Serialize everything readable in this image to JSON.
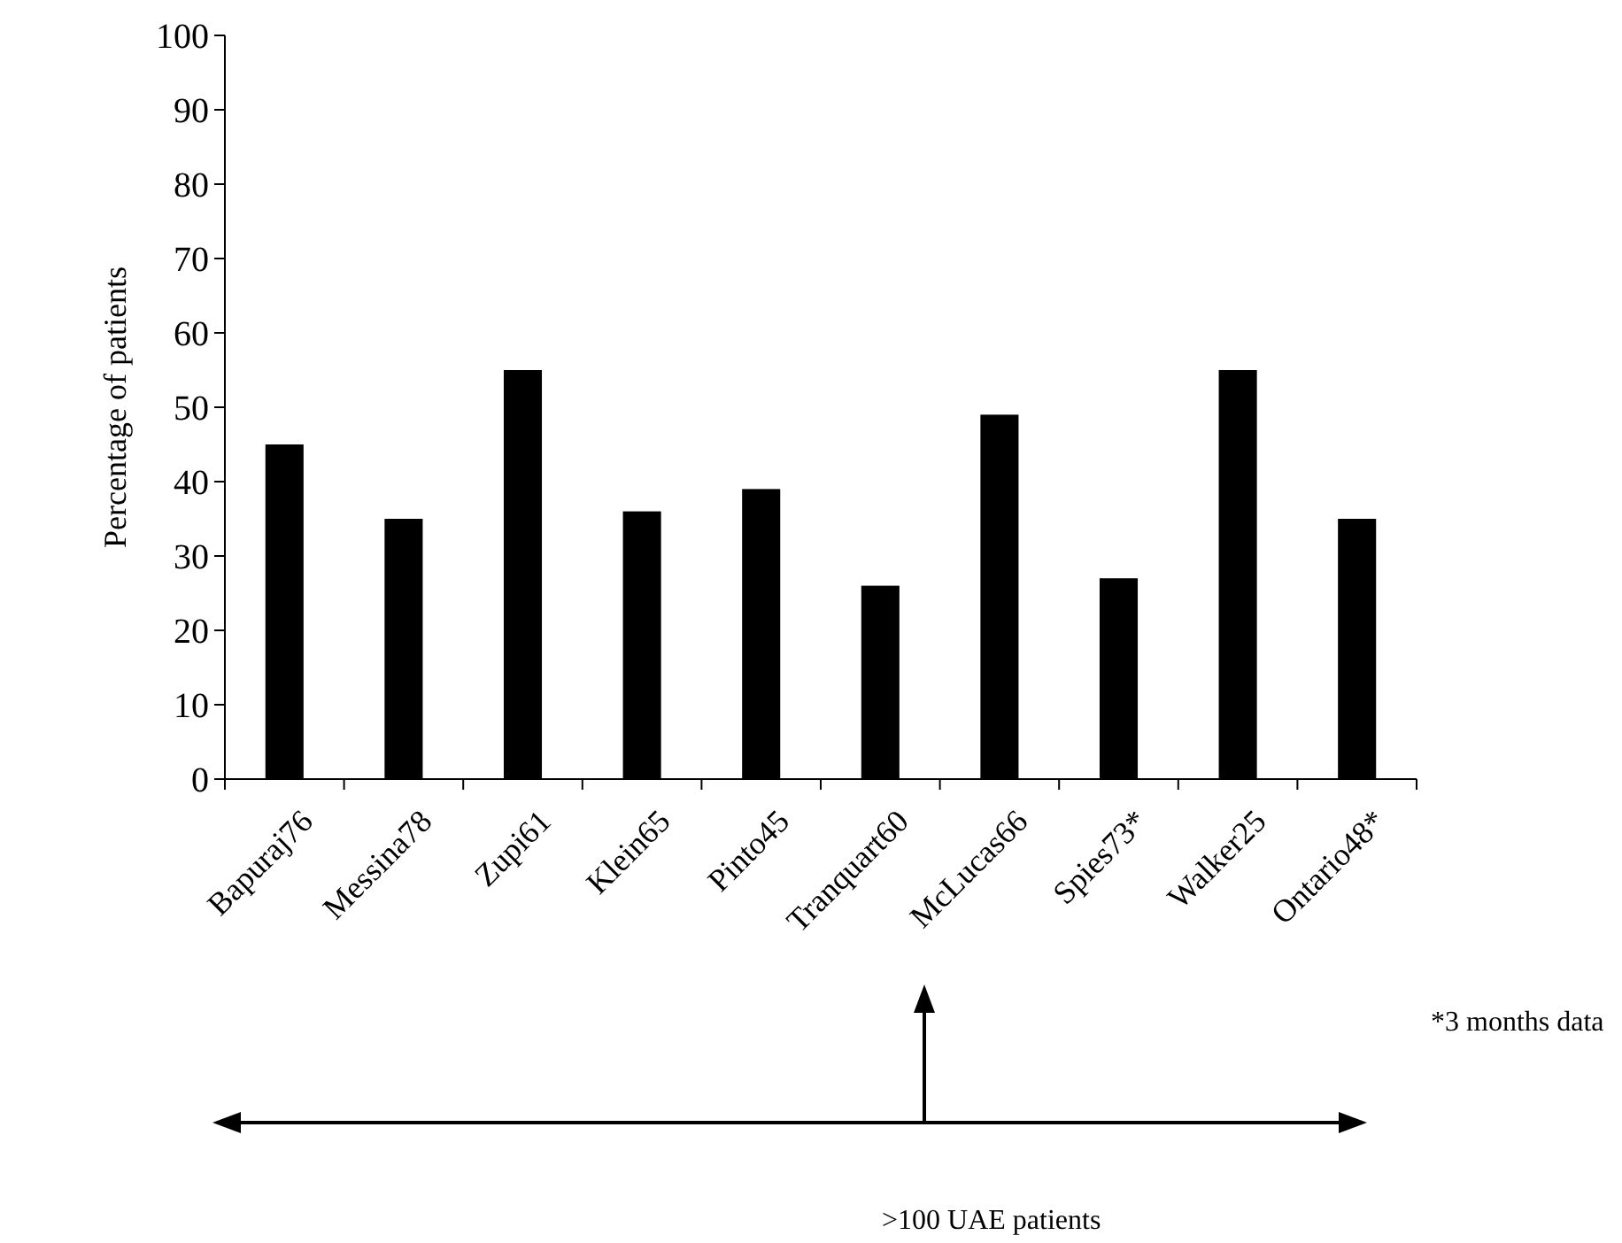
{
  "chart_data": {
    "type": "bar",
    "ylabel": "Percentage of patients",
    "categories": [
      "Bapuraj76",
      "Messina78",
      "Zupi61",
      "Klein65",
      "Pinto45",
      "Tranquart60",
      "McLucas66",
      "Spies73*",
      "Walker25",
      "Ontario48*"
    ],
    "values": [
      45,
      35,
      55,
      36,
      39,
      26,
      49,
      27,
      55,
      35
    ],
    "color": "#000000",
    "ylim": [
      0,
      100
    ],
    "yticks": [
      0,
      10,
      20,
      30,
      40,
      50,
      60,
      70,
      80,
      90,
      100
    ],
    "grid": false,
    "annotations": [
      "*3 months data",
      ">100 UAE patients"
    ]
  }
}
